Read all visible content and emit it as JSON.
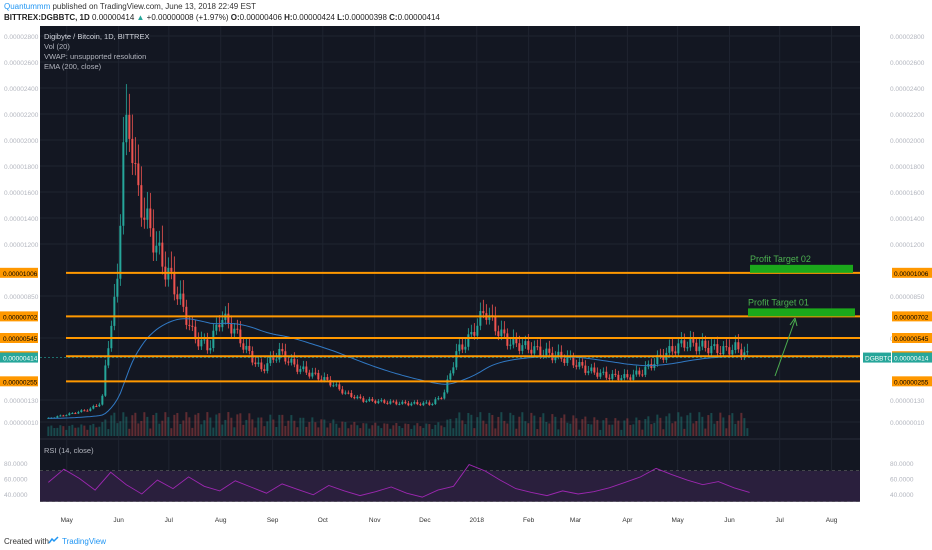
{
  "header": {
    "author": "Quantummm",
    "published": "published on TradingView.com, June 13, 2018 22:49 EST",
    "symbol": "BITTREX:DGBBTC, 1D",
    "last": "0.00000414",
    "change": "+0.00000008 (+1.97%)",
    "open_label": "O:",
    "open": "0.00000406",
    "high_label": "H:",
    "high": "0.00000424",
    "low_label": "L:",
    "low": "0.00000398",
    "close_label": "C:",
    "close": "0.00000414"
  },
  "legend": {
    "title": "Digibyte / Bitcoin, 1D, BITTREX",
    "vol": "Vol (20)",
    "vwap": "VWAP: unsupported resolution",
    "ema": "EMA (200, close)",
    "rsi": "RSI (14, close)"
  },
  "footer": {
    "created": "Created with",
    "brand": "TradingView"
  },
  "colors": {
    "background": "#131722",
    "grid": "#1f2430",
    "up": "#26a69a",
    "down": "#ef5350",
    "level": "#ff9800",
    "target": "#1ba81b",
    "ema": "#3179c4",
    "vol_ma": "#ff9800",
    "rsi": "#9c27b0",
    "axis_text": "#b2b5be"
  },
  "chart_data": {
    "type": "candlestick",
    "price_axis_ticks": [
      "0.00002800",
      "0.00002600",
      "0.00002400",
      "0.00002200",
      "0.00002000",
      "0.00001800",
      "0.00001600",
      "0.00001400",
      "0.00001200",
      "0.00000850",
      "0.00000545",
      "0.00000130",
      "0.00000010"
    ],
    "time_axis_ticks": [
      "May",
      "Jun",
      "Jul",
      "Aug",
      "Sep",
      "Oct",
      "Nov",
      "Dec",
      "2018",
      "Feb",
      "Mar",
      "Apr",
      "May",
      "Jun",
      "Jul",
      "Aug"
    ],
    "horizontal_levels": [
      {
        "label": "0.00001006",
        "value": 1.006e-05
      },
      {
        "label": "0.00000702",
        "value": 7.02e-06
      },
      {
        "label": "0.00000545",
        "value": 5.45e-06
      },
      {
        "label": "0.00000423",
        "value": 4.23e-06
      },
      {
        "label": "0.00000255",
        "value": 2.55e-06
      }
    ],
    "current_price_label": "0.00000414",
    "current_symbol_label": "DGBBTC",
    "annotations": [
      {
        "text": "Profit Target 02",
        "level": 1.006e-05
      },
      {
        "text": "Profit Target 01",
        "level": 7.02e-06
      }
    ],
    "close_series": [
      {
        "d": "2017-04-20",
        "c": 3e-07
      },
      {
        "d": "2017-05-01",
        "c": 5e-07
      },
      {
        "d": "2017-05-15",
        "c": 8e-07
      },
      {
        "d": "2017-05-22",
        "c": 1.2e-06
      },
      {
        "d": "2017-05-25",
        "c": 4.5e-06
      },
      {
        "d": "2017-05-31",
        "c": 9e-06
      },
      {
        "d": "2017-06-04",
        "c": 2e-05
      },
      {
        "d": "2017-06-08",
        "c": 2.1e-05
      },
      {
        "d": "2017-06-12",
        "c": 1.6e-05
      },
      {
        "d": "2017-06-20",
        "c": 1.3e-05
      },
      {
        "d": "2017-06-26",
        "c": 1.1e-05
      },
      {
        "d": "2017-07-05",
        "c": 9e-06
      },
      {
        "d": "2017-07-16",
        "c": 5.5e-06
      },
      {
        "d": "2017-07-25",
        "c": 4.8e-06
      },
      {
        "d": "2017-08-01",
        "c": 7e-06
      },
      {
        "d": "2017-08-08",
        "c": 6.2e-06
      },
      {
        "d": "2017-08-16",
        "c": 4.7e-06
      },
      {
        "d": "2017-08-25",
        "c": 3.3e-06
      },
      {
        "d": "2017-09-05",
        "c": 4.5e-06
      },
      {
        "d": "2017-09-15",
        "c": 3.5e-06
      },
      {
        "d": "2017-09-25",
        "c": 3e-06
      },
      {
        "d": "2017-10-05",
        "c": 2.5e-06
      },
      {
        "d": "2017-10-15",
        "c": 1.7e-06
      },
      {
        "d": "2017-10-25",
        "c": 1.3e-06
      },
      {
        "d": "2017-11-05",
        "c": 1.2e-06
      },
      {
        "d": "2017-11-20",
        "c": 1.1e-06
      },
      {
        "d": "2017-12-05",
        "c": 1.1e-06
      },
      {
        "d": "2017-12-12",
        "c": 1.6e-06
      },
      {
        "d": "2017-12-20",
        "c": 4.5e-06
      },
      {
        "d": "2017-12-28",
        "c": 5.5e-06
      },
      {
        "d": "2018-01-06",
        "c": 7.5e-06
      },
      {
        "d": "2018-01-12",
        "c": 6.2e-06
      },
      {
        "d": "2018-01-20",
        "c": 5.2e-06
      },
      {
        "d": "2018-02-01",
        "c": 4.8e-06
      },
      {
        "d": "2018-02-12",
        "c": 4.4e-06
      },
      {
        "d": "2018-02-25",
        "c": 4e-06
      },
      {
        "d": "2018-03-08",
        "c": 3.3e-06
      },
      {
        "d": "2018-03-20",
        "c": 2.9e-06
      },
      {
        "d": "2018-04-01",
        "c": 2.8e-06
      },
      {
        "d": "2018-04-10",
        "c": 3.2e-06
      },
      {
        "d": "2018-04-22",
        "c": 4.3e-06
      },
      {
        "d": "2018-05-05",
        "c": 5.1e-06
      },
      {
        "d": "2018-05-15",
        "c": 4.9e-06
      },
      {
        "d": "2018-05-28",
        "c": 4.6e-06
      },
      {
        "d": "2018-06-05",
        "c": 4.8e-06
      },
      {
        "d": "2018-06-13",
        "c": 4.14e-06
      }
    ],
    "rsi_axis_ticks": [
      "80.0000",
      "60.0000",
      "40.0000"
    ],
    "rsi_series": [
      55,
      72,
      60,
      45,
      68,
      52,
      40,
      58,
      47,
      62,
      50,
      44,
      57,
      49,
      41,
      53,
      46,
      39,
      51,
      44,
      38,
      43,
      49,
      41,
      36,
      45,
      50,
      78,
      70,
      58,
      47,
      42,
      38,
      44,
      40,
      43,
      48,
      55,
      62,
      73,
      65,
      58,
      52,
      56,
      48,
      42
    ]
  }
}
